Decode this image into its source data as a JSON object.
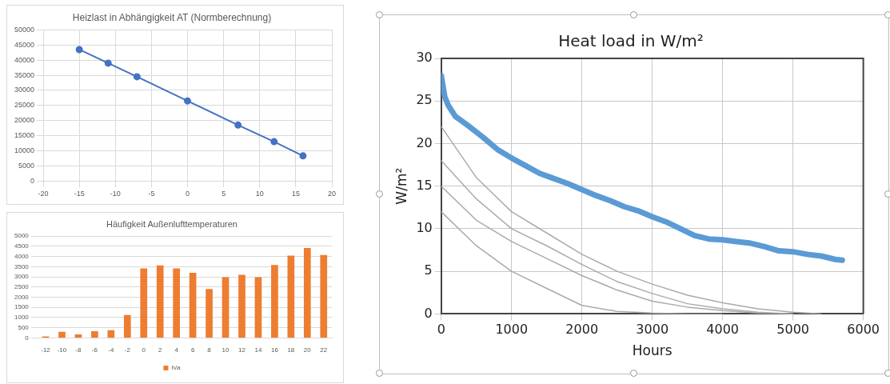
{
  "chart_data": [
    {
      "type": "line",
      "title": "Heizlast in Abhängigkeit AT (Normberechnung)",
      "x": [
        -15,
        -11,
        -7,
        0,
        7,
        12,
        16
      ],
      "series": [
        {
          "color": "#4472c4",
          "values": [
            43500,
            39000,
            34500,
            26500,
            18500,
            13000,
            8300
          ]
        }
      ],
      "xlim": [
        -20,
        20
      ],
      "xticks": [
        -20,
        -15,
        -10,
        -5,
        0,
        5,
        10,
        15,
        20
      ],
      "ylim": [
        0,
        50000
      ],
      "yticks": [
        0,
        5000,
        10000,
        15000,
        20000,
        25000,
        30000,
        35000,
        40000,
        45000,
        50000
      ],
      "grid": true,
      "marker": "circle"
    },
    {
      "type": "bar",
      "title": "Häufigkeit Außenlufttemperaturen",
      "categories": [
        "-12",
        "-10",
        "-8",
        "-6",
        "-4",
        "-2",
        "0",
        "2",
        "4",
        "6",
        "8",
        "10",
        "12",
        "14",
        "16",
        "18",
        "20",
        "22"
      ],
      "series": [
        {
          "name": "h/a",
          "color": "#ed7d31",
          "values": [
            70,
            300,
            170,
            330,
            380,
            1130,
            3420,
            3560,
            3420,
            3200,
            2400,
            2980,
            3100,
            2980,
            3580,
            4040,
            4420,
            4070
          ]
        }
      ],
      "ylim": [
        0,
        5000
      ],
      "yticks": [
        0,
        500,
        1000,
        1500,
        2000,
        2500,
        3000,
        3500,
        4000,
        4500,
        5000
      ],
      "grid": "y",
      "legend": "bottom"
    },
    {
      "type": "line",
      "title": "Heat load in W/m²",
      "xlabel": "Hours",
      "ylabel": "W/m²",
      "series": [
        {
          "color": "#aaaaaa",
          "x": [
            0,
            500,
            1000,
            1500,
            2000,
            2500,
            3000,
            3500,
            4000,
            4500,
            5000,
            5400
          ],
          "values": [
            22,
            16,
            12,
            9.5,
            7,
            5,
            3.5,
            2.2,
            1.3,
            0.6,
            0.2,
            0
          ]
        },
        {
          "color": "#aaaaaa",
          "x": [
            0,
            500,
            1000,
            1500,
            2000,
            2500,
            3000,
            3500,
            4000,
            4500,
            5000
          ],
          "values": [
            18,
            13.5,
            10,
            8,
            5.8,
            3.8,
            2.4,
            1.2,
            0.6,
            0.2,
            0
          ]
        },
        {
          "color": "#aaaaaa",
          "x": [
            0,
            500,
            1000,
            1500,
            2000,
            2500,
            3000,
            3500,
            4000,
            4500,
            5000
          ],
          "values": [
            15,
            11,
            8.5,
            6.5,
            4.5,
            2.8,
            1.5,
            0.8,
            0.4,
            0.1,
            0
          ]
        },
        {
          "color": "#aaaaaa",
          "x": [
            0,
            500,
            1000,
            1500,
            2000,
            2500,
            3000,
            3500,
            4000
          ],
          "values": [
            12,
            8,
            5,
            3,
            1,
            0.3,
            0.1,
            0,
            0
          ]
        },
        {
          "color": "#5b9bd5",
          "x": [
            0,
            20,
            50,
            100,
            200,
            400,
            600,
            800,
            1000,
            1200,
            1400,
            1600,
            1800,
            2000,
            2200,
            2400,
            2600,
            2800,
            3000,
            3200,
            3400,
            3600,
            3800,
            4000,
            4200,
            4400,
            4600,
            4800,
            5000,
            5200,
            5400,
            5600,
            5700
          ],
          "values": [
            28,
            27,
            25.5,
            24.5,
            23.2,
            22,
            20.7,
            19.3,
            18.3,
            17.4,
            16.5,
            15.9,
            15.3,
            14.6,
            13.9,
            13.3,
            12.6,
            12.1,
            11.4,
            10.8,
            10,
            9.2,
            8.8,
            8.7,
            8.5,
            8.3,
            7.9,
            7.4,
            7.3,
            7,
            6.8,
            6.4,
            6.3
          ]
        }
      ],
      "xlim": [
        0,
        6000
      ],
      "xticks": [
        0,
        1000,
        2000,
        3000,
        4000,
        5000,
        6000
      ],
      "ylim": [
        0,
        30
      ],
      "yticks": [
        0,
        5,
        10,
        15,
        20,
        25,
        30
      ],
      "grid": true
    }
  ]
}
